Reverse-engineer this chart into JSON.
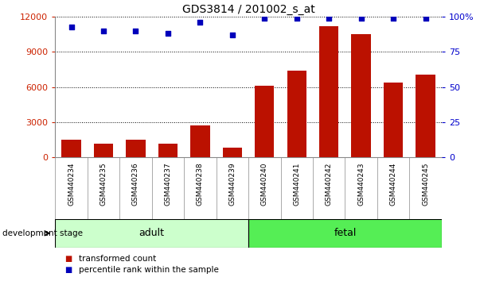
{
  "title": "GDS3814 / 201002_s_at",
  "categories": [
    "GSM440234",
    "GSM440235",
    "GSM440236",
    "GSM440237",
    "GSM440238",
    "GSM440239",
    "GSM440240",
    "GSM440241",
    "GSM440242",
    "GSM440243",
    "GSM440244",
    "GSM440245"
  ],
  "bar_values": [
    1500,
    1200,
    1500,
    1200,
    2700,
    800,
    6100,
    7400,
    11200,
    10500,
    6400,
    7100
  ],
  "dot_values": [
    93,
    90,
    90,
    88,
    96,
    87,
    99,
    99,
    99,
    99,
    99,
    99
  ],
  "bar_color": "#bb1100",
  "dot_color": "#0000bb",
  "ylim_left": [
    0,
    12000
  ],
  "ylim_right": [
    0,
    100
  ],
  "yticks_left": [
    0,
    3000,
    6000,
    9000,
    12000
  ],
  "yticks_right": [
    0,
    25,
    50,
    75,
    100
  ],
  "ytick_labels_right": [
    "0",
    "25",
    "50",
    "75",
    "100%"
  ],
  "groups": [
    {
      "label": "adult",
      "start": 0,
      "end": 5,
      "color": "#ccffcc"
    },
    {
      "label": "fetal",
      "start": 6,
      "end": 11,
      "color": "#55ee55"
    }
  ],
  "group_row_label": "development stage",
  "legend_bar_label": "transformed count",
  "legend_dot_label": "percentile rank within the sample",
  "axis_left_color": "#cc2200",
  "axis_right_color": "#0000cc",
  "plot_bg": "#ffffff",
  "tick_area_bg": "#d8d8d8"
}
